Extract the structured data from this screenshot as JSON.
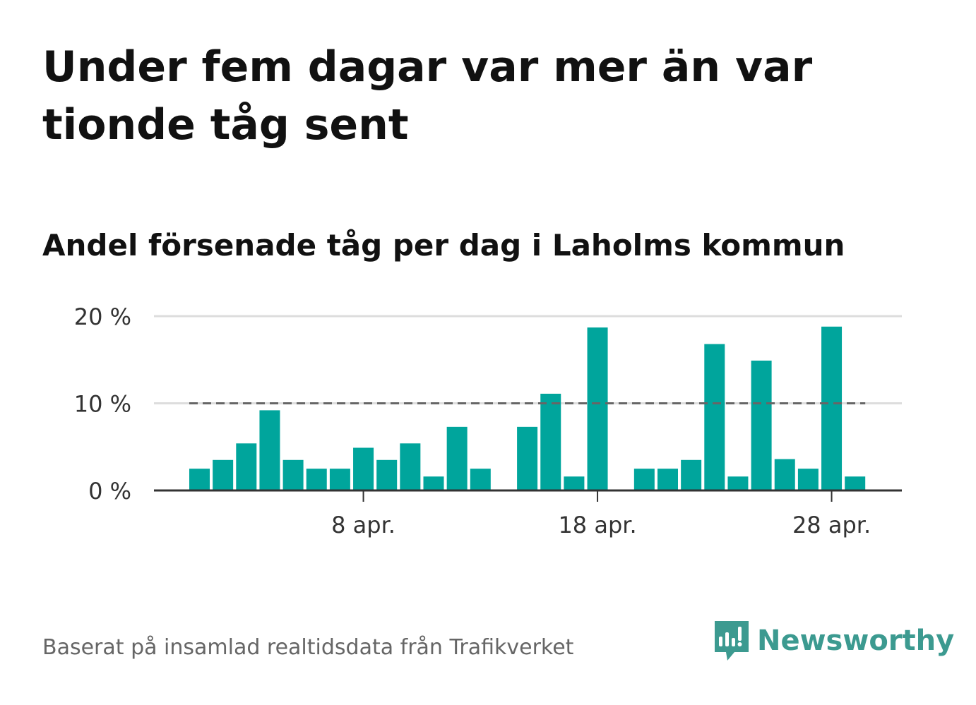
{
  "title": "Under fem dagar var mer än var tionde tåg sent",
  "subtitle": "Andel försenade tåg per dag i Laholms kommun",
  "source": "Baserat på insamlad realtidsdata från Trafikverket",
  "brand": {
    "name": "Newsworthy",
    "icon": "newsworthy-logo-icon",
    "color": "#3c9a90"
  },
  "colors": {
    "bar": "#00a59c",
    "threshold": "#666666",
    "grid": "#dddddd",
    "axis": "#333333"
  },
  "chart_data": {
    "type": "bar",
    "x": [
      "2023-04-01",
      "2023-04-02",
      "2023-04-03",
      "2023-04-04",
      "2023-04-05",
      "2023-04-06",
      "2023-04-07",
      "2023-04-08",
      "2023-04-09",
      "2023-04-10",
      "2023-04-11",
      "2023-04-12",
      "2023-04-13",
      "2023-04-14",
      "2023-04-15",
      "2023-04-16",
      "2023-04-17",
      "2023-04-18",
      "2023-04-19",
      "2023-04-20",
      "2023-04-21",
      "2023-04-22",
      "2023-04-23",
      "2023-04-24",
      "2023-04-25",
      "2023-04-26",
      "2023-04-27",
      "2023-04-28",
      "2023-04-29"
    ],
    "values": [
      2.5,
      3.5,
      5.4,
      9.2,
      3.5,
      2.5,
      2.5,
      4.9,
      3.5,
      5.4,
      1.6,
      7.3,
      2.5,
      null,
      7.3,
      11.1,
      1.6,
      18.7,
      null,
      2.5,
      2.5,
      3.5,
      16.8,
      1.6,
      14.9,
      3.6,
      2.5,
      18.8,
      1.6
    ],
    "threshold": 10,
    "ylim": [
      0,
      20
    ],
    "yticks": [
      0,
      10,
      20
    ],
    "ytick_labels": [
      "0 %",
      "10 %",
      "20 %"
    ],
    "xticks": [
      {
        "date": "2023-04-08",
        "label": "8 apr."
      },
      {
        "date": "2023-04-18",
        "label": "18 apr."
      },
      {
        "date": "2023-04-28",
        "label": "28 apr."
      }
    ],
    "xlabel": "",
    "ylabel": "",
    "grid": true
  }
}
